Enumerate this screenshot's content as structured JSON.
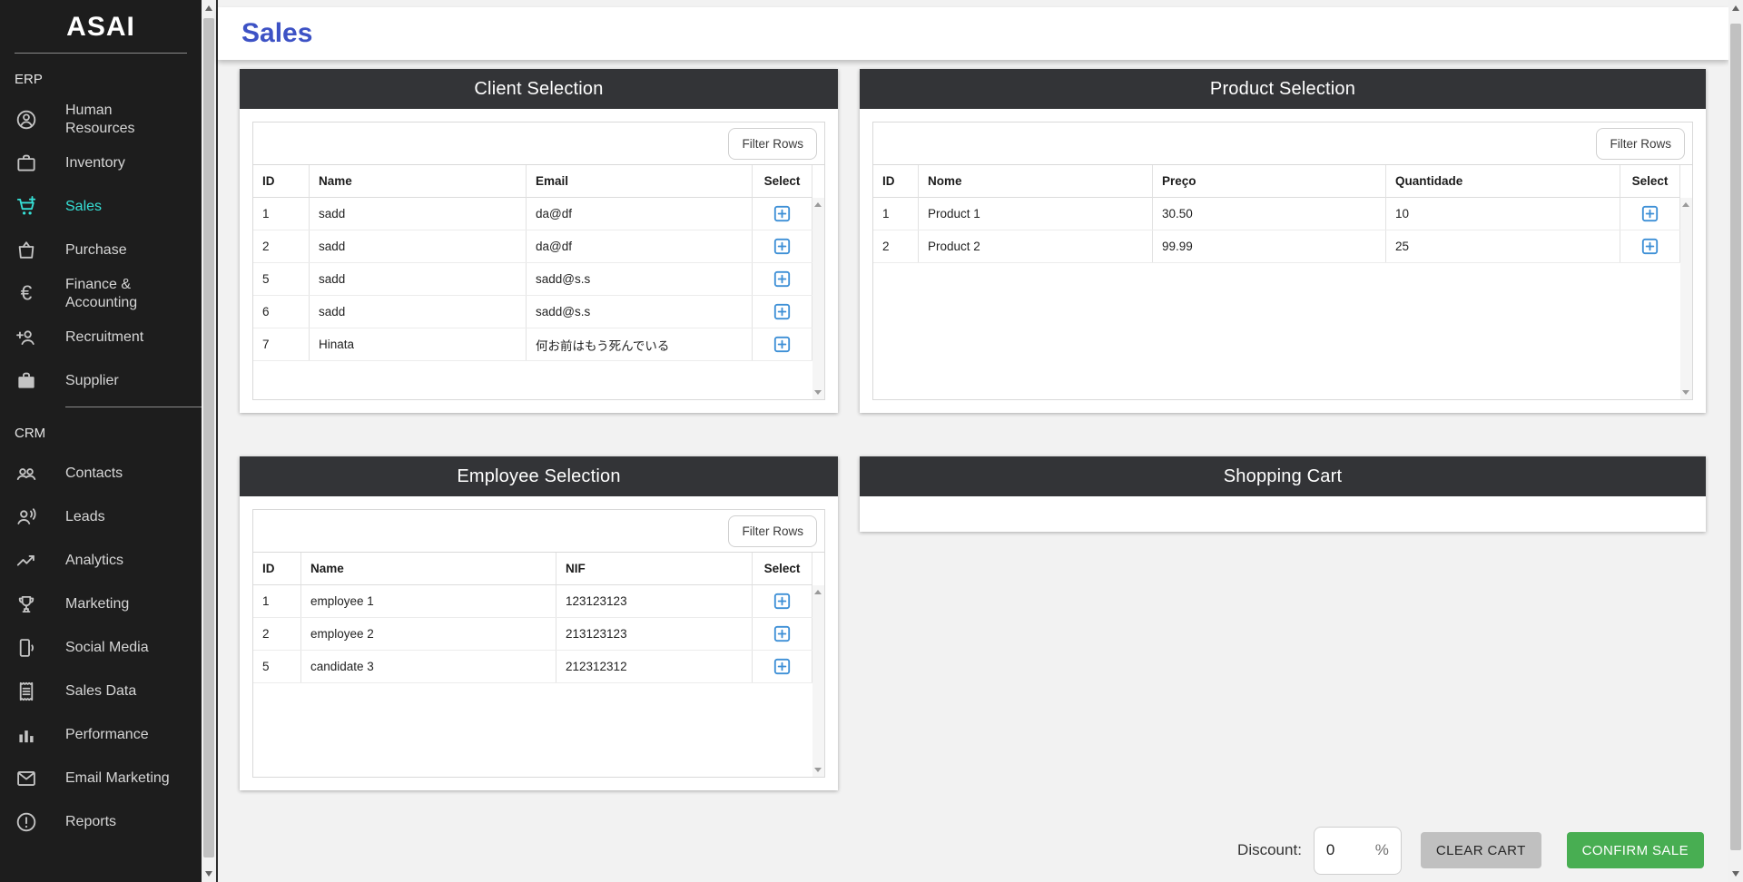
{
  "app": {
    "brand": "ASAI"
  },
  "header": {
    "title": "Sales"
  },
  "sidebar": {
    "sections": [
      {
        "label": "ERP",
        "items": [
          {
            "label": "Human Resources",
            "icon": "person-circle",
            "active": false
          },
          {
            "label": "Inventory",
            "icon": "briefcase",
            "active": false
          },
          {
            "label": "Sales",
            "icon": "cart-plus",
            "active": true
          },
          {
            "label": "Purchase",
            "icon": "shopping-bag",
            "active": false
          },
          {
            "label": "Finance & Accounting",
            "icon": "euro",
            "active": false
          },
          {
            "label": "Recruitment",
            "icon": "person-add",
            "active": false
          },
          {
            "label": "Supplier",
            "icon": "briefcase-filled",
            "active": false
          }
        ]
      },
      {
        "label": "CRM",
        "items": [
          {
            "label": "Contacts",
            "icon": "people",
            "active": false
          },
          {
            "label": "Leads",
            "icon": "voice",
            "active": false
          },
          {
            "label": "Analytics",
            "icon": "trending-up",
            "active": false
          },
          {
            "label": "Marketing",
            "icon": "trophy",
            "active": false
          },
          {
            "label": "Social Media",
            "icon": "phone-sound",
            "active": false
          },
          {
            "label": "Sales Data",
            "icon": "receipt",
            "active": false
          },
          {
            "label": "Performance",
            "icon": "bar-chart",
            "active": false
          },
          {
            "label": "Email Marketing",
            "icon": "mail",
            "active": false
          },
          {
            "label": "Reports",
            "icon": "alert-circle",
            "active": false
          }
        ]
      }
    ]
  },
  "panels": {
    "client": {
      "title": "Client Selection",
      "filter_button": "Filter Rows",
      "columns": [
        "ID",
        "Name",
        "Email",
        "Select"
      ],
      "rows": [
        [
          "1",
          "sadd",
          "da@df"
        ],
        [
          "2",
          "sadd",
          "da@df"
        ],
        [
          "5",
          "sadd",
          "sadd@s.s"
        ],
        [
          "6",
          "sadd",
          "sadd@s.s"
        ],
        [
          "7",
          "Hinata",
          "何お前はもう死んでいる"
        ]
      ]
    },
    "product": {
      "title": "Product Selection",
      "filter_button": "Filter Rows",
      "columns": [
        "ID",
        "Nome",
        "Preço",
        "Quantidade",
        "Select"
      ],
      "rows": [
        [
          "1",
          "Product 1",
          "30.50",
          "10"
        ],
        [
          "2",
          "Product 2",
          "99.99",
          "25"
        ]
      ]
    },
    "employee": {
      "title": "Employee Selection",
      "filter_button": "Filter Rows",
      "columns": [
        "ID",
        "Name",
        "NIF",
        "Select"
      ],
      "rows": [
        [
          "1",
          "employee 1",
          "123123123"
        ],
        [
          "2",
          "employee 2",
          "213123123"
        ],
        [
          "5",
          "candidate 3",
          "212312312"
        ]
      ]
    },
    "cart": {
      "title": "Shopping Cart"
    }
  },
  "footer": {
    "discount_label": "Discount:",
    "discount_value": "0",
    "discount_unit": "%",
    "clear_button": "CLEAR CART",
    "confirm_button": "CONFIRM SALE"
  },
  "icons": {
    "row_select": "add-box"
  },
  "colors": {
    "accent": "#36e0d6",
    "title_blue": "#3d52c5",
    "panel_header": "#333437",
    "select_blue": "#3d8fd6",
    "confirm_green": "#48ae52",
    "clear_gray": "#c0c0c0"
  }
}
